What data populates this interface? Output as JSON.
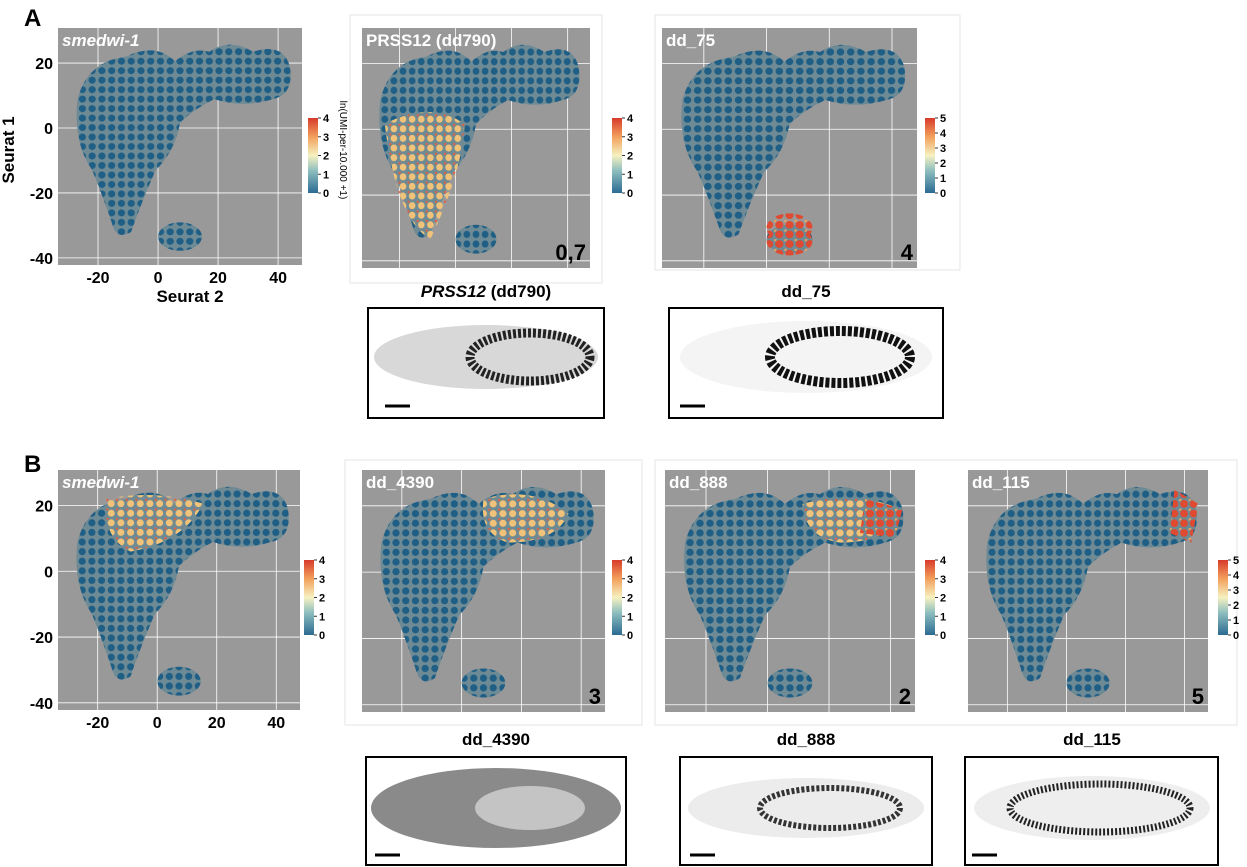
{
  "axes": {
    "y_label": "Seurat 1",
    "x_label": "Seurat 2",
    "yticks": [
      20,
      0,
      -20,
      -40
    ],
    "xticks": [
      -20,
      0,
      20,
      40
    ]
  },
  "colorbar_label": "ln(UMI-per-10.000 +1)",
  "panels": [
    {
      "letter": "A",
      "plots": [
        {
          "title": "smedwi-1",
          "scale": [
            0,
            1,
            2,
            3,
            4
          ]
        },
        {
          "title": "PRSS12 (dd790)",
          "scale": [
            0,
            1,
            2,
            3,
            4
          ],
          "count": "0,7"
        },
        {
          "title": "dd_75",
          "scale": [
            0,
            1,
            2,
            3,
            4,
            5
          ],
          "count": 4
        }
      ],
      "images": [
        {
          "caption_italic": "PRSS12",
          "caption": "(dd790)"
        },
        {
          "caption": "dd_75"
        }
      ]
    },
    {
      "letter": "B",
      "plots": [
        {
          "title": "smedwi-1",
          "scale": [
            0,
            1,
            2,
            3,
            4
          ]
        },
        {
          "title": "dd_4390",
          "scale": [
            0,
            1,
            2,
            3,
            4
          ],
          "count": 3
        },
        {
          "title": "dd_888",
          "scale": [
            0,
            1,
            2,
            3,
            4
          ],
          "count": 2
        },
        {
          "title": "dd_115",
          "scale": [
            0,
            1,
            2,
            3,
            4,
            5
          ],
          "count": 5
        }
      ],
      "images": [
        {
          "caption": "dd_4390"
        },
        {
          "caption": "dd_888"
        },
        {
          "caption": "dd_115"
        }
      ]
    }
  ]
}
